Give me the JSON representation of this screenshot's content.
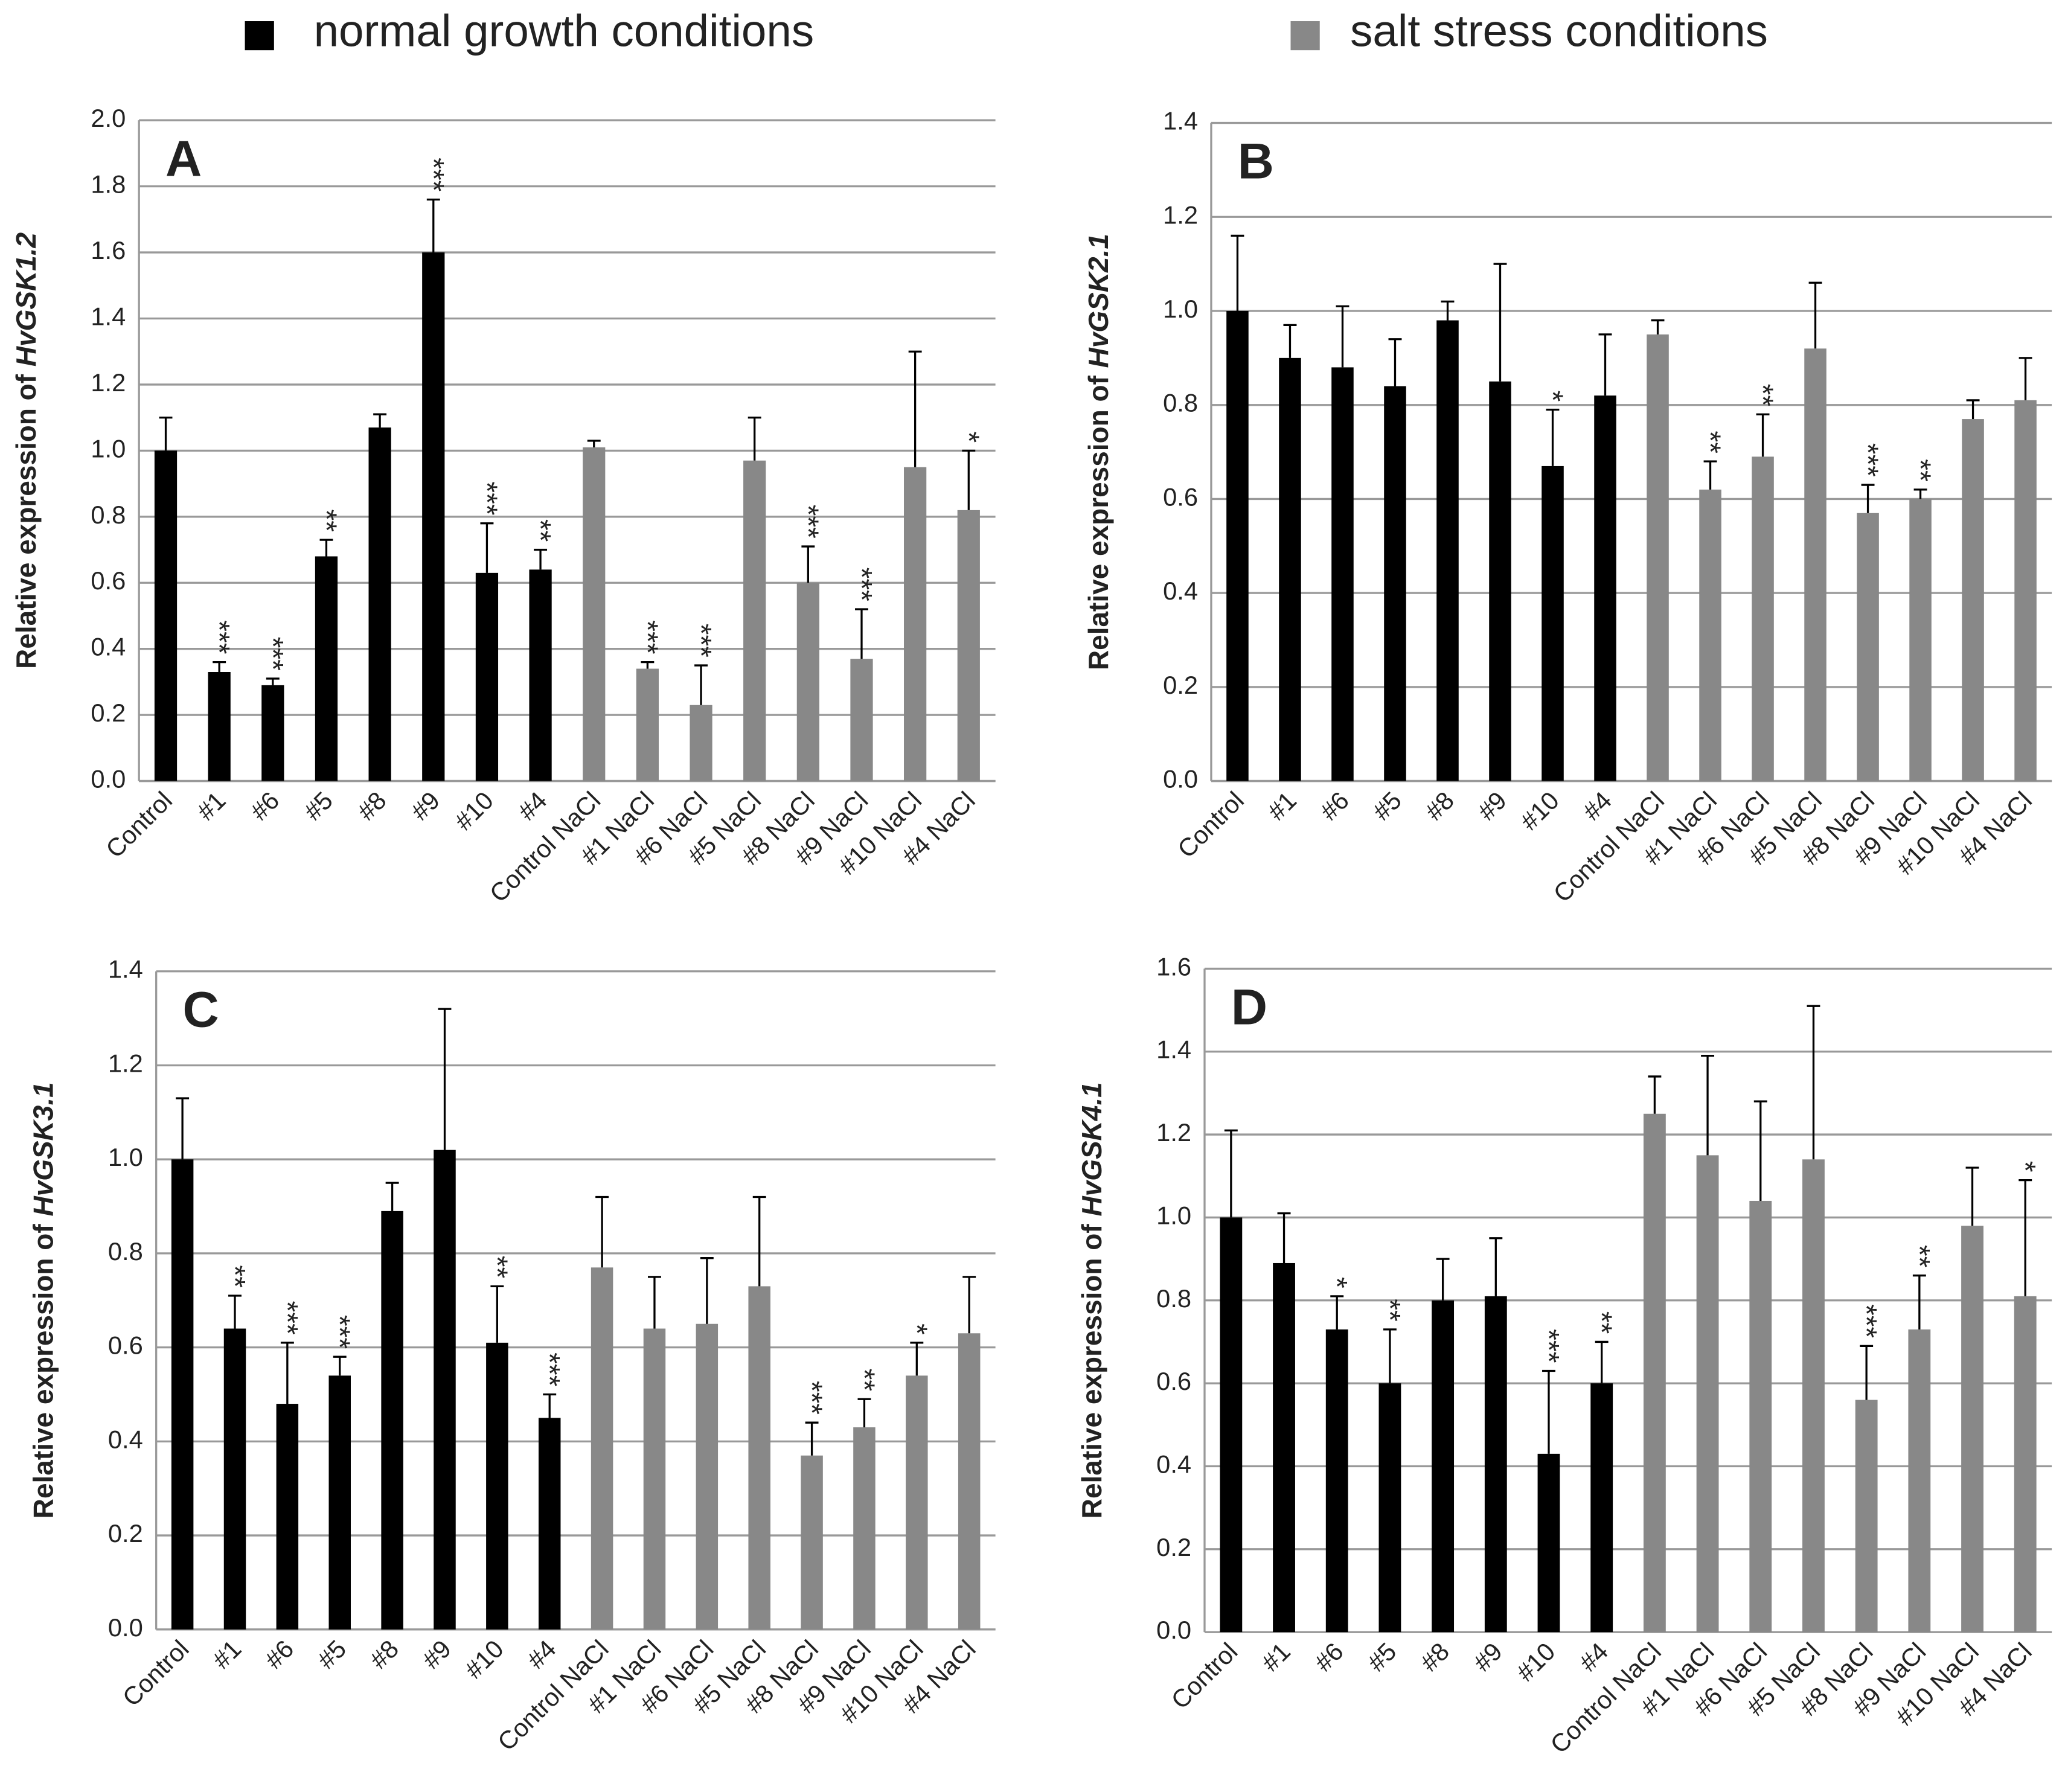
{
  "legend": [
    {
      "name": "normal growth conditions",
      "color": "#000000"
    },
    {
      "name": "salt stress conditions",
      "color": "#888888"
    }
  ],
  "chart_data": [
    {
      "type": "bar",
      "panel": "A",
      "ylabel": {
        "text": "Relative expression of",
        "gene": "HvGSK1.2"
      },
      "categories": [
        "Control",
        "#1",
        "#6",
        "#5",
        "#8",
        "#9",
        "#10",
        "#4",
        "Control NaCl",
        "#1 NaCl",
        "#6 NaCl",
        "#5 NaCl",
        "#8 NaCl",
        "#9 NaCl",
        "#10 NaCl",
        "#4 NaCl"
      ],
      "ylim": [
        0,
        2
      ],
      "yticks": [
        {
          "value": 0,
          "label": "0.0"
        },
        0.2,
        0.4,
        0.6,
        0.8,
        {
          "value": 1,
          "label": "1.0"
        },
        1.2,
        1.4,
        1.6,
        1.8,
        {
          "value": 2,
          "label": "2.0"
        }
      ],
      "grid": true,
      "series": [
        {
          "color": "#000000",
          "values": [
            1.0,
            0.33,
            0.29,
            0.68,
            1.07,
            1.6,
            0.63,
            0.64,
            null,
            null,
            null,
            null,
            null,
            null,
            null,
            null
          ],
          "errors": [
            0.1,
            0.03,
            0.02,
            0.05,
            0.04,
            0.16,
            0.15,
            0.06,
            null,
            null,
            null,
            null,
            null,
            null,
            null,
            null
          ],
          "significance": [
            null,
            "***",
            "***",
            "**",
            null,
            "***",
            "***",
            "**",
            null,
            null,
            null,
            null,
            null,
            null,
            null,
            null
          ]
        },
        {
          "color": "#888888",
          "values": [
            null,
            null,
            null,
            null,
            null,
            null,
            null,
            null,
            1.01,
            0.34,
            0.23,
            0.97,
            0.6,
            0.37,
            0.95,
            0.82
          ],
          "errors": [
            null,
            null,
            null,
            null,
            null,
            null,
            null,
            null,
            0.02,
            0.02,
            0.12,
            0.13,
            0.11,
            0.15,
            0.35,
            0.18
          ],
          "significance": [
            null,
            null,
            null,
            null,
            null,
            null,
            null,
            null,
            null,
            "***",
            "***",
            null,
            "***",
            "***",
            null,
            "*"
          ]
        }
      ]
    },
    {
      "type": "bar",
      "panel": "B",
      "ylabel": {
        "text": "Relative expression of",
        "gene": "HvGSK2.1"
      },
      "categories": [
        "Control",
        "#1",
        "#6",
        "#5",
        "#8",
        "#9",
        "#10",
        "#4",
        "Control NaCl",
        "#1 NaCl",
        "#6 NaCl",
        "#5 NaCl",
        "#8 NaCl",
        "#9 NaCl",
        "#10 NaCl",
        "#4 NaCl"
      ],
      "ylim": [
        0,
        1.4
      ],
      "yticks": [
        {
          "value": 0,
          "label": "0.0"
        },
        0.2,
        0.4,
        0.6,
        0.8,
        {
          "value": 1,
          "label": "1.0"
        },
        1.2,
        1.4
      ],
      "grid": true,
      "series": [
        {
          "color": "#000000",
          "values": [
            1.0,
            0.9,
            0.88,
            0.84,
            0.98,
            0.85,
            0.67,
            0.82,
            null,
            null,
            null,
            null,
            null,
            null,
            null,
            null
          ],
          "errors": [
            0.16,
            0.07,
            0.13,
            0.1,
            0.04,
            0.25,
            0.12,
            0.13,
            null,
            null,
            null,
            null,
            null,
            null,
            null,
            null
          ],
          "significance": [
            null,
            null,
            null,
            null,
            null,
            null,
            "*",
            null,
            null,
            null,
            null,
            null,
            null,
            null,
            null,
            null
          ]
        },
        {
          "color": "#888888",
          "values": [
            null,
            null,
            null,
            null,
            null,
            null,
            null,
            null,
            0.95,
            0.62,
            0.69,
            0.92,
            0.57,
            0.6,
            0.77,
            0.81
          ],
          "errors": [
            null,
            null,
            null,
            null,
            null,
            null,
            null,
            null,
            0.03,
            0.06,
            0.09,
            0.14,
            0.06,
            0.02,
            0.04,
            0.09
          ],
          "significance": [
            null,
            null,
            null,
            null,
            null,
            null,
            null,
            null,
            null,
            "**",
            "**",
            null,
            "***",
            "**",
            null,
            null
          ]
        }
      ]
    },
    {
      "type": "bar",
      "panel": "C",
      "ylabel": {
        "text": "Relative expression of",
        "gene": "HvGSK3.1"
      },
      "categories": [
        "Control",
        "#1",
        "#6",
        "#5",
        "#8",
        "#9",
        "#10",
        "#4",
        "Control NaCl",
        "#1 NaCl",
        "#6 NaCl",
        "#5 NaCl",
        "#8 NaCl",
        "#9 NaCl",
        "#10 NaCl",
        "#4 NaCl"
      ],
      "ylim": [
        0,
        1.4
      ],
      "yticks": [
        {
          "value": 0,
          "label": "0.0"
        },
        0.2,
        0.4,
        0.6,
        0.8,
        {
          "value": 1,
          "label": "1.0"
        },
        1.2,
        1.4
      ],
      "grid": true,
      "series": [
        {
          "color": "#000000",
          "values": [
            1.0,
            0.64,
            0.48,
            0.54,
            0.89,
            1.02,
            0.61,
            0.45,
            null,
            null,
            null,
            null,
            null,
            null,
            null,
            null
          ],
          "errors": [
            0.13,
            0.07,
            0.13,
            0.04,
            0.06,
            0.3,
            0.12,
            0.05,
            null,
            null,
            null,
            null,
            null,
            null,
            null,
            null
          ],
          "significance": [
            null,
            "**",
            "***",
            "***",
            null,
            null,
            "**",
            "***",
            null,
            null,
            null,
            null,
            null,
            null,
            null,
            null
          ]
        },
        {
          "color": "#888888",
          "values": [
            null,
            null,
            null,
            null,
            null,
            null,
            null,
            null,
            0.77,
            0.64,
            0.65,
            0.73,
            0.37,
            0.43,
            0.54,
            0.63
          ],
          "errors": [
            null,
            null,
            null,
            null,
            null,
            null,
            null,
            null,
            0.15,
            0.11,
            0.14,
            0.19,
            0.07,
            0.06,
            0.07,
            0.12
          ],
          "significance": [
            null,
            null,
            null,
            null,
            null,
            null,
            null,
            null,
            null,
            null,
            null,
            null,
            "***",
            "**",
            "*",
            null
          ]
        }
      ]
    },
    {
      "type": "bar",
      "panel": "D",
      "ylabel": {
        "text": "Relative expression of",
        "gene": "HvGSK4.1"
      },
      "categories": [
        "Control",
        "#1",
        "#6",
        "#5",
        "#8",
        "#9",
        "#10",
        "#4",
        "Control NaCl",
        "#1 NaCl",
        "#6 NaCl",
        "#5 NaCl",
        "#8 NaCl",
        "#9 NaCl",
        "#10 NaCl",
        "#4 NaCl"
      ],
      "ylim": [
        0,
        1.6
      ],
      "yticks": [
        {
          "value": 0,
          "label": "0.0"
        },
        0.2,
        0.4,
        0.6,
        0.8,
        {
          "value": 1,
          "label": "1.0"
        },
        1.2,
        1.4,
        1.6
      ],
      "grid": true,
      "series": [
        {
          "color": "#000000",
          "values": [
            1.0,
            0.89,
            0.73,
            0.6,
            0.8,
            0.81,
            0.43,
            0.6,
            null,
            null,
            null,
            null,
            null,
            null,
            null,
            null
          ],
          "errors": [
            0.21,
            0.12,
            0.08,
            0.13,
            0.1,
            0.14,
            0.2,
            0.1,
            null,
            null,
            null,
            null,
            null,
            null,
            null,
            null
          ],
          "significance": [
            null,
            null,
            "*",
            "**",
            null,
            null,
            "***",
            "**",
            null,
            null,
            null,
            null,
            null,
            null,
            null,
            null
          ]
        },
        {
          "color": "#888888",
          "values": [
            null,
            null,
            null,
            null,
            null,
            null,
            null,
            null,
            1.25,
            1.15,
            1.04,
            1.14,
            0.56,
            0.73,
            0.98,
            0.81
          ],
          "errors": [
            null,
            null,
            null,
            null,
            null,
            null,
            null,
            null,
            0.09,
            0.24,
            0.24,
            0.37,
            0.13,
            0.13,
            0.14,
            0.28
          ],
          "significance": [
            null,
            null,
            null,
            null,
            null,
            null,
            null,
            null,
            null,
            null,
            null,
            null,
            "***",
            "**",
            null,
            "*"
          ]
        }
      ]
    }
  ]
}
